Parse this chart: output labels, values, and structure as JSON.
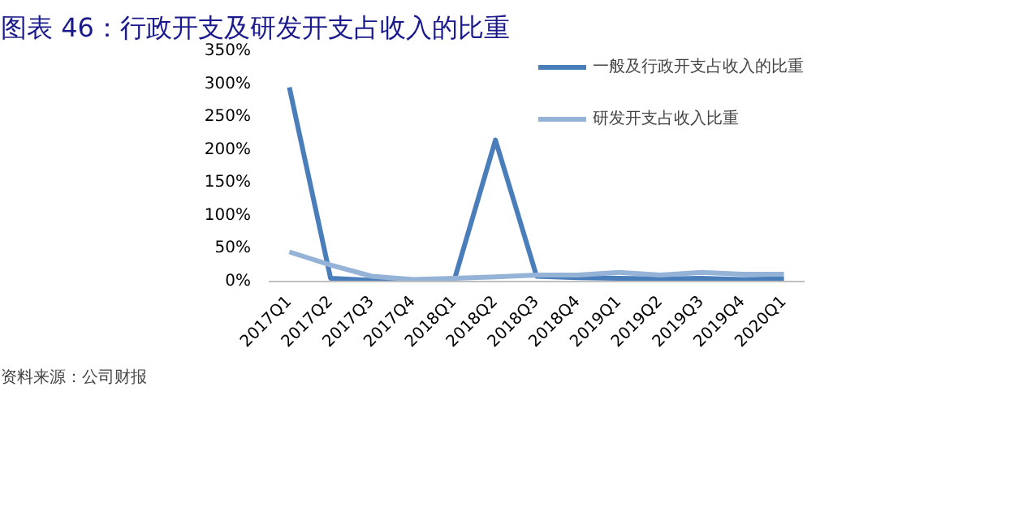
{
  "chart_data": {
    "type": "line",
    "title": "图表 46：行政开支及研发开支占收入的比重",
    "categories": [
      "2017Q1",
      "2017Q2",
      "2017Q3",
      "2017Q4",
      "2018Q1",
      "2018Q2",
      "2018Q3",
      "2018Q4",
      "2019Q1",
      "2019Q2",
      "2019Q3",
      "2019Q4",
      "2020Q1"
    ],
    "series": [
      {
        "name": "一般及行政开支占收入的比重",
        "color": "#4a7ebb",
        "values": [
          295,
          5,
          2,
          1,
          2,
          215,
          8,
          6,
          5,
          4,
          5,
          3,
          4
        ]
      },
      {
        "name": "研发开支占收入比重",
        "color": "#95b3d7",
        "values": [
          45,
          25,
          8,
          3,
          5,
          7,
          10,
          10,
          14,
          10,
          14,
          11,
          11
        ]
      }
    ],
    "ylim": [
      0,
      350
    ],
    "yticks": [
      {
        "value": 0,
        "label": "0%"
      },
      {
        "value": 50,
        "label": "50%"
      },
      {
        "value": 100,
        "label": "100%"
      },
      {
        "value": 150,
        "label": "150%"
      },
      {
        "value": 200,
        "label": "200%"
      },
      {
        "value": 250,
        "label": "250%"
      },
      {
        "value": 300,
        "label": "300%"
      },
      {
        "value": 350,
        "label": "350%"
      }
    ],
    "grid": false,
    "legend": "top right",
    "marker": "none",
    "line_style": "solid",
    "annotations": [
      "资料来源：公司财报"
    ]
  }
}
